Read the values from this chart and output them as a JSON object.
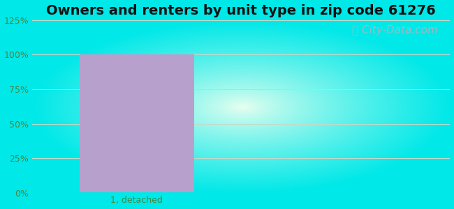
{
  "title": "Owners and renters by unit type in zip code 61276",
  "categories": [
    "1, detached"
  ],
  "values": [
    100
  ],
  "bar_color": "#b8a0cc",
  "bar_width": 0.55,
  "ylim": [
    0,
    125
  ],
  "yticks": [
    0,
    25,
    50,
    75,
    100,
    125
  ],
  "ytick_labels": [
    "0%",
    "25%",
    "50%",
    "75%",
    "100%",
    "125%"
  ],
  "title_fontsize": 14,
  "title_fontweight": "bold",
  "bg_cyan": "#00e8e8",
  "bg_center_top": "#e8f8ee",
  "bg_center_bottom": "#d8f0e0",
  "watermark_text": "City-Data.com",
  "watermark_color": "#a8b8c0",
  "watermark_fontsize": 11,
  "grid_color": "#c8d8c8",
  "tick_color": "#448844",
  "axis_label_color": "#447744"
}
